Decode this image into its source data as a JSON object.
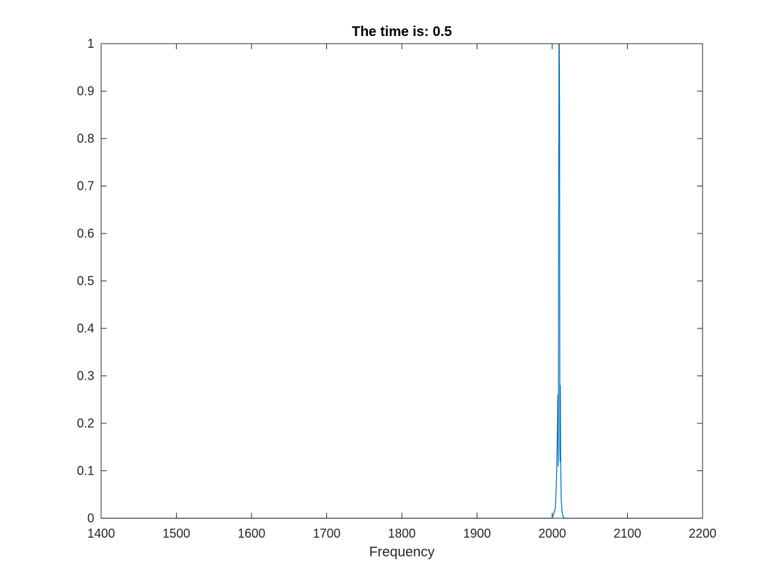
{
  "chart_data": {
    "type": "line",
    "title": "The time is: 0.5",
    "xlabel": "Frequency",
    "ylabel": "",
    "xlim": [
      1400,
      2200
    ],
    "ylim": [
      0,
      1
    ],
    "xticks": [
      1400,
      1500,
      1600,
      1700,
      1800,
      1900,
      2000,
      2100,
      2200
    ],
    "xtick_labels": [
      "1400",
      "1500",
      "1600",
      "1700",
      "1800",
      "1900",
      "2000",
      "2100",
      "2200"
    ],
    "yticks": [
      0,
      0.1,
      0.2,
      0.3,
      0.4,
      0.5,
      0.6,
      0.7,
      0.8,
      0.9,
      1
    ],
    "ytick_labels": [
      "0",
      "0.1",
      "0.2",
      "0.3",
      "0.4",
      "0.5",
      "0.6",
      "0.7",
      "0.8",
      "0.9",
      "1"
    ],
    "grid": false,
    "box": true,
    "series": [
      {
        "color": "#0072BD",
        "x": [
          1400,
          2000,
          2004,
          2005,
          2006,
          2007,
          2007.5,
          2008,
          2008.3,
          2008.6,
          2009,
          2009.4,
          2009.8,
          2010.2,
          2010.5,
          2010.8,
          2011.2,
          2011.6,
          2012,
          2013,
          2014,
          2016,
          2200
        ],
        "y": [
          0,
          0,
          0.02,
          0.05,
          0.1,
          0.2,
          0.26,
          0.11,
          0.3,
          0.7,
          1.0,
          1.0,
          0.85,
          0.15,
          0.12,
          0.28,
          0.15,
          0.08,
          0.04,
          0.015,
          0.005,
          0,
          0
        ]
      }
    ]
  }
}
